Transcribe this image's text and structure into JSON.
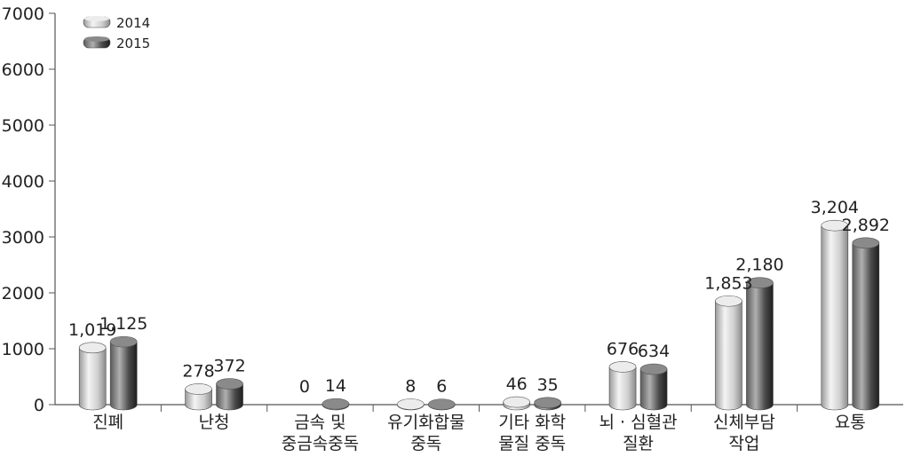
{
  "chart_data": {
    "type": "bar",
    "style": "3d-cylinder",
    "categories": [
      [
        "진폐"
      ],
      [
        "난청"
      ],
      [
        "금속 및",
        "중금속중독"
      ],
      [
        "유기화합물",
        "중독"
      ],
      [
        "기타 화학",
        "물질 중독"
      ],
      [
        "뇌 · 심혈관",
        "질환"
      ],
      [
        "신체부담",
        "작업"
      ],
      [
        "요통"
      ]
    ],
    "series": [
      {
        "name": "2014",
        "values": [
          1019,
          278,
          0,
          8,
          46,
          676,
          1853,
          3204
        ],
        "labels": [
          "1,019",
          "278",
          "0",
          "8",
          "46",
          "676",
          "1,853",
          "3,204"
        ]
      },
      {
        "name": "2015",
        "values": [
          1125,
          372,
          14,
          6,
          35,
          634,
          2180,
          2892
        ],
        "labels": [
          "1,125",
          "372",
          "14",
          "6",
          "35",
          "634",
          "2,180",
          "2,892"
        ]
      }
    ],
    "yticks": [
      "0",
      "1000",
      "2000",
      "3000",
      "4000",
      "5000",
      "6000",
      "7000"
    ],
    "ylim": [
      0,
      7000
    ],
    "grid": false,
    "legend_position": "top-left",
    "colors": {
      "series_2014": "#d8d8d8",
      "series_2015": "#3c3c3c",
      "axis": "#555555"
    }
  }
}
